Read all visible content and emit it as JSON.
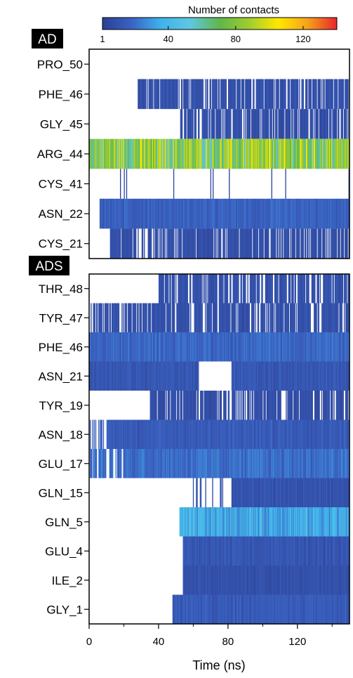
{
  "chart_data": {
    "type": "heatmap",
    "colorbar": {
      "title": "Number of contacts",
      "ticks": [
        1,
        40,
        80,
        120
      ],
      "tick_labels": [
        "1",
        "40",
        "80",
        "120"
      ],
      "range": [
        1,
        140
      ],
      "colormap": [
        "#2b3f93",
        "#3a63c4",
        "#3eb3ec",
        "#5fc7e0",
        "#5fb74a",
        "#9fcd2f",
        "#ffe800",
        "#f7a21b",
        "#e8252a"
      ]
    },
    "xaxis": {
      "label": "Time (ns)",
      "ticks": [
        0,
        40,
        80,
        120
      ],
      "tick_labels": [
        "0",
        "40",
        "80",
        "120"
      ],
      "range": [
        0,
        150
      ]
    },
    "panels": [
      {
        "name": "AD",
        "residues": [
          {
            "label": "PRO_50",
            "base": 8,
            "segments": [
              [
                0,
                2,
                "sparse"
              ],
              [
                2,
                20,
                "rare"
              ],
              [
                20,
                68,
                "none"
              ],
              [
                68,
                150,
                "none"
              ]
            ]
          },
          {
            "label": "PHE_46",
            "base": 9,
            "segments": [
              [
                0,
                28,
                "none"
              ],
              [
                28,
                150,
                "mid"
              ]
            ]
          },
          {
            "label": "GLY_45",
            "base": 8,
            "segments": [
              [
                0,
                52,
                "none"
              ],
              [
                52,
                150,
                "mid"
              ]
            ]
          },
          {
            "label": "ARG_44",
            "base": 78,
            "segments": [
              [
                0,
                3,
                "dense"
              ],
              [
                3,
                150,
                "dense"
              ]
            ]
          },
          {
            "label": "CYS_41",
            "base": 6,
            "segments": [
              [
                0,
                150,
                "rare"
              ]
            ]
          },
          {
            "label": "ASN_22",
            "base": 16,
            "segments": [
              [
                0,
                6,
                "rare"
              ],
              [
                6,
                40,
                "dense"
              ],
              [
                40,
                150,
                "dense"
              ]
            ]
          },
          {
            "label": "CYS_21",
            "base": 8,
            "segments": [
              [
                0,
                12,
                "none"
              ],
              [
                12,
                150,
                "mid"
              ]
            ]
          }
        ]
      },
      {
        "name": "ADS",
        "residues": [
          {
            "label": "THR_48",
            "base": 9,
            "segments": [
              [
                0,
                13,
                "rare"
              ],
              [
                13,
                40,
                "none"
              ],
              [
                40,
                150,
                "mid"
              ]
            ]
          },
          {
            "label": "TYR_47",
            "base": 9,
            "segments": [
              [
                0,
                12,
                "mid"
              ],
              [
                12,
                150,
                "mid"
              ]
            ]
          },
          {
            "label": "PHE_46",
            "base": 18,
            "segments": [
              [
                0,
                44,
                "dense"
              ],
              [
                44,
                150,
                "dense"
              ]
            ]
          },
          {
            "label": "ASN_21",
            "base": 12,
            "segments": [
              [
                0,
                63,
                "dense"
              ],
              [
                63,
                82,
                "none"
              ],
              [
                82,
                150,
                "dense"
              ]
            ]
          },
          {
            "label": "TYR_19",
            "base": 8,
            "segments": [
              [
                0,
                35,
                "none"
              ],
              [
                35,
                150,
                "mid"
              ]
            ]
          },
          {
            "label": "ASN_18",
            "base": 14,
            "segments": [
              [
                0,
                10,
                "sparse"
              ],
              [
                10,
                150,
                "dense"
              ]
            ]
          },
          {
            "label": "GLU_17",
            "base": 20,
            "segments": [
              [
                0,
                20,
                "mid"
              ],
              [
                20,
                150,
                "dense"
              ]
            ]
          },
          {
            "label": "GLN_15",
            "base": 10,
            "segments": [
              [
                0,
                58,
                "none"
              ],
              [
                58,
                82,
                "sparse"
              ],
              [
                82,
                150,
                "dense"
              ]
            ]
          },
          {
            "label": "GLN_5",
            "base": 35,
            "segments": [
              [
                0,
                52,
                "none"
              ],
              [
                52,
                150,
                "dense"
              ]
            ]
          },
          {
            "label": "GLU_4",
            "base": 12,
            "segments": [
              [
                0,
                54,
                "none"
              ],
              [
                54,
                150,
                "dense"
              ]
            ]
          },
          {
            "label": "ILE_2",
            "base": 9,
            "segments": [
              [
                0,
                54,
                "none"
              ],
              [
                54,
                150,
                "dense"
              ]
            ]
          },
          {
            "label": "GLY_1",
            "base": 14,
            "segments": [
              [
                0,
                48,
                "none"
              ],
              [
                48,
                150,
                "dense"
              ]
            ]
          }
        ]
      }
    ]
  }
}
